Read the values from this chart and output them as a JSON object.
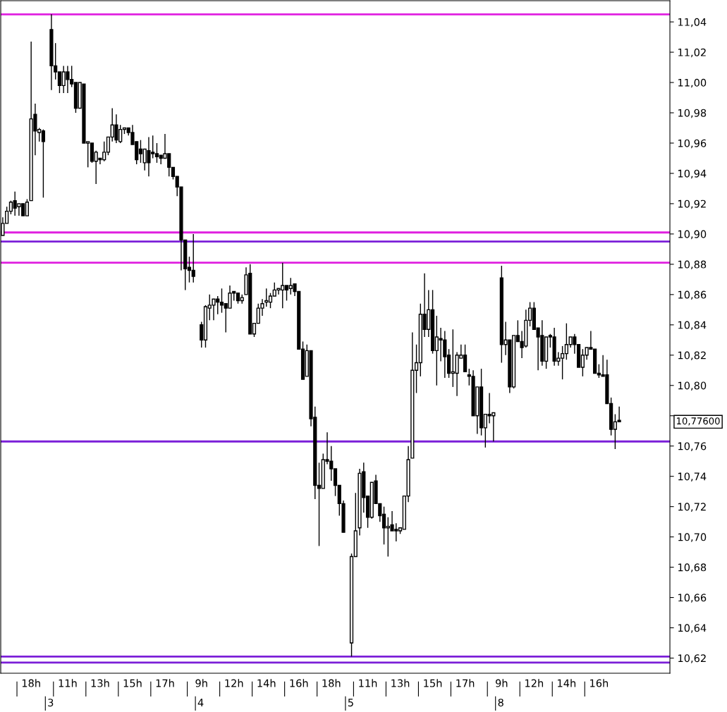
{
  "chart_data": {
    "type": "candlestick",
    "categories": [
      null,
      null,
      null,
      null,
      null,
      null,
      null,
      "18h",
      null,
      null,
      null,
      null,
      null,
      null,
      null,
      null,
      "11h",
      null,
      null,
      null,
      null,
      null,
      null,
      null,
      "13h",
      null,
      null,
      null,
      null,
      null,
      null,
      null,
      "15h",
      null,
      null,
      null,
      null,
      null,
      null,
      null,
      "17h",
      null,
      null,
      null,
      null,
      null,
      null,
      null,
      null,
      "9h",
      null,
      null,
      null,
      null,
      null,
      null,
      null,
      "12h",
      null,
      null,
      null,
      null,
      null,
      null,
      null,
      "14h",
      null,
      null,
      null,
      null,
      null,
      null,
      null,
      "16h",
      null,
      null,
      null,
      null,
      null,
      null,
      null,
      "18h",
      null,
      null,
      null,
      null,
      null,
      null,
      null,
      null,
      "11h",
      null,
      null,
      null,
      null,
      null,
      null,
      null,
      "13h",
      null,
      null,
      null,
      null,
      null,
      null,
      null,
      "15h",
      null,
      null,
      null,
      null,
      null,
      null,
      null,
      "17h",
      null,
      null,
      null,
      null,
      null,
      null,
      null,
      null,
      "9h",
      null,
      null,
      null,
      null,
      null,
      null,
      null,
      "12h",
      null,
      null,
      null,
      null,
      null,
      null,
      null,
      "14h",
      null,
      null,
      null,
      null,
      null,
      null,
      null,
      "16h",
      null,
      null,
      null,
      null,
      null,
      null,
      null,
      null,
      null,
      null,
      null,
      null,
      null,
      null,
      null,
      null,
      null
    ],
    "ohlc": [
      [
        10.899,
        10.911,
        10.899,
        10.907
      ],
      [
        10.907,
        10.918,
        10.907,
        10.915
      ],
      [
        10.915,
        10.922,
        10.913,
        10.921
      ],
      [
        10.922,
        10.928,
        10.912,
        10.917
      ],
      [
        10.918,
        10.92,
        10.912,
        10.92
      ],
      [
        10.92,
        10.92,
        10.912,
        10.912
      ],
      [
        10.912,
        10.923,
        10.912,
        10.921
      ],
      [
        10.922,
        11.027,
        10.922,
        10.976
      ],
      [
        10.979,
        10.986,
        10.952,
        10.968
      ],
      [
        10.967,
        10.97,
        10.961,
        10.969
      ],
      [
        10.968,
        10.969,
        10.924,
        10.961
      ],
      null,
      [
        11.035,
        11.045,
        10.995,
        11.011
      ],
      [
        11.011,
        11.026,
        11.002,
        11.007
      ],
      [
        11.007,
        11.007,
        10.993,
        10.998
      ],
      [
        10.998,
        11.011,
        10.993,
        11.007
      ],
      [
        11.007,
        11.011,
        10.993,
        11.002
      ],
      [
        11.002,
        11.011,
        10.997,
        10.999
      ],
      [
        11.0,
        11.0,
        10.98,
        10.983
      ],
      [
        10.983,
        11.0,
        10.983,
        11.0
      ],
      [
        10.999,
        10.999,
        10.96,
        10.96
      ],
      [
        10.96,
        10.961,
        10.944,
        10.961
      ],
      [
        10.96,
        10.96,
        10.947,
        10.948
      ],
      [
        10.948,
        10.955,
        10.933,
        10.954
      ],
      [
        10.95,
        10.95,
        10.946,
        10.949
      ],
      [
        10.949,
        10.961,
        10.948,
        10.954
      ],
      [
        10.954,
        10.964,
        10.952,
        10.964
      ],
      [
        10.964,
        10.983,
        10.961,
        10.972
      ],
      [
        10.972,
        10.979,
        10.96,
        10.962
      ],
      [
        10.961,
        10.972,
        10.96,
        10.969
      ],
      [
        10.969,
        10.97,
        10.966,
        10.97
      ],
      [
        10.97,
        10.97,
        10.965,
        10.967
      ],
      [
        10.967,
        10.972,
        10.959,
        10.959
      ],
      [
        10.961,
        10.961,
        10.946,
        10.949
      ],
      [
        10.956,
        10.962,
        10.947,
        10.953
      ],
      [
        10.947,
        10.956,
        10.942,
        10.956
      ],
      [
        10.955,
        10.964,
        10.938,
        10.947
      ],
      [
        10.954,
        10.965,
        10.95,
        10.953
      ],
      [
        10.953,
        10.96,
        10.947,
        10.951
      ],
      [
        10.952,
        10.952,
        10.946,
        10.95
      ],
      [
        10.95,
        10.966,
        10.95,
        10.953
      ],
      [
        10.953,
        10.953,
        10.938,
        10.944
      ],
      [
        10.944,
        10.944,
        10.936,
        10.938
      ],
      [
        10.938,
        10.938,
        10.925,
        10.931
      ],
      [
        10.931,
        10.931,
        10.876,
        10.896
      ],
      [
        10.896,
        10.896,
        10.863,
        10.877
      ],
      [
        10.878,
        10.885,
        10.868,
        10.876
      ],
      [
        10.876,
        10.9,
        10.868,
        10.872
      ],
      null,
      [
        10.84,
        10.842,
        10.825,
        10.83
      ],
      [
        10.83,
        10.853,
        10.825,
        10.852
      ],
      [
        10.851,
        10.86,
        10.843,
        10.853
      ],
      [
        10.853,
        10.857,
        10.843,
        10.857
      ],
      [
        10.857,
        10.859,
        10.847,
        10.855
      ],
      [
        10.855,
        10.864,
        10.848,
        10.853
      ],
      [
        10.854,
        10.854,
        10.835,
        10.851
      ],
      [
        10.851,
        10.866,
        10.851,
        10.861
      ],
      [
        10.862,
        10.862,
        10.856,
        10.861
      ],
      [
        10.861,
        10.861,
        10.854,
        10.856
      ],
      [
        10.856,
        10.86,
        10.854,
        10.858
      ],
      [
        10.86,
        10.878,
        10.86,
        10.873
      ],
      [
        10.874,
        10.88,
        10.834,
        10.834
      ],
      [
        10.834,
        10.841,
        10.832,
        10.841
      ],
      [
        10.841,
        10.854,
        10.841,
        10.851
      ],
      [
        10.851,
        10.857,
        10.846,
        10.854
      ],
      [
        10.855,
        10.864,
        10.852,
        10.856
      ],
      [
        10.855,
        10.861,
        10.851,
        10.859
      ],
      [
        10.859,
        10.868,
        10.859,
        10.863
      ],
      [
        10.863,
        10.864,
        10.86,
        10.864
      ],
      [
        10.863,
        10.881,
        10.851,
        10.866
      ],
      [
        10.866,
        10.866,
        10.856,
        10.863
      ],
      [
        10.864,
        10.871,
        10.86,
        10.866
      ],
      [
        10.867,
        10.867,
        10.859,
        10.862
      ],
      [
        10.862,
        10.862,
        10.824,
        10.824
      ],
      [
        10.824,
        10.829,
        10.804,
        10.804
      ],
      [
        10.806,
        10.827,
        10.806,
        10.823
      ],
      [
        10.823,
        10.823,
        10.773,
        10.778
      ],
      [
        10.779,
        10.786,
        10.725,
        10.734
      ],
      [
        10.734,
        10.749,
        10.694,
        10.732
      ],
      [
        10.732,
        10.755,
        10.732,
        10.751
      ],
      [
        10.751,
        10.769,
        10.748,
        10.75
      ],
      [
        10.75,
        10.76,
        10.737,
        10.745
      ],
      [
        10.745,
        10.745,
        10.727,
        10.734
      ],
      [
        10.734,
        10.734,
        10.714,
        10.722
      ],
      [
        10.722,
        10.724,
        10.703,
        10.703
      ],
      null,
      [
        10.63,
        10.689,
        10.621,
        10.687
      ],
      [
        10.687,
        10.729,
        10.687,
        10.704
      ],
      [
        10.706,
        10.745,
        10.701,
        10.742
      ],
      [
        10.743,
        10.749,
        10.716,
        10.726
      ],
      [
        10.727,
        10.727,
        10.706,
        10.713
      ],
      [
        10.713,
        10.736,
        10.712,
        10.736
      ],
      [
        10.737,
        10.741,
        10.722,
        10.722
      ],
      [
        10.722,
        10.722,
        10.71,
        10.714
      ],
      [
        10.715,
        10.72,
        10.695,
        10.706
      ],
      [
        10.706,
        10.713,
        10.687,
        10.707
      ],
      [
        10.708,
        10.717,
        10.704,
        10.704
      ],
      [
        10.705,
        10.709,
        10.697,
        10.704
      ],
      [
        10.704,
        10.706,
        10.702,
        10.706
      ],
      [
        10.705,
        10.727,
        10.705,
        10.727
      ],
      [
        10.727,
        10.76,
        10.723,
        10.751
      ],
      [
        10.752,
        10.835,
        10.752,
        10.81
      ],
      [
        10.81,
        10.827,
        10.795,
        10.815
      ],
      [
        10.815,
        10.854,
        10.806,
        10.847
      ],
      [
        10.847,
        10.874,
        10.832,
        10.837
      ],
      [
        10.837,
        10.863,
        10.832,
        10.85
      ],
      [
        10.85,
        10.863,
        10.821,
        10.823
      ],
      [
        10.823,
        10.846,
        10.8,
        10.832
      ],
      [
        10.831,
        10.838,
        10.816,
        10.83
      ],
      [
        10.83,
        10.836,
        10.805,
        10.819
      ],
      [
        10.82,
        10.824,
        10.805,
        10.808
      ],
      [
        10.808,
        10.837,
        10.799,
        10.809
      ],
      [
        10.808,
        10.822,
        10.793,
        10.82
      ],
      [
        10.818,
        10.827,
        10.818,
        10.82
      ],
      [
        10.82,
        10.827,
        10.809,
        10.809
      ],
      [
        10.807,
        10.811,
        10.8,
        10.806
      ],
      [
        10.806,
        10.81,
        10.78,
        10.78
      ],
      [
        10.78,
        10.799,
        10.768,
        10.799
      ],
      [
        10.799,
        10.811,
        10.767,
        10.772
      ],
      [
        10.772,
        10.781,
        10.759,
        10.781
      ],
      [
        10.781,
        10.795,
        10.775,
        10.78
      ],
      [
        10.78,
        10.782,
        10.763,
        10.782
      ],
      null,
      [
        10.871,
        10.879,
        10.815,
        10.827
      ],
      [
        10.827,
        10.842,
        10.82,
        10.83
      ],
      [
        10.83,
        10.83,
        10.795,
        10.799
      ],
      [
        10.799,
        10.833,
        10.798,
        10.833
      ],
      [
        10.833,
        10.843,
        10.829,
        10.829
      ],
      [
        10.829,
        10.836,
        10.818,
        10.825
      ],
      [
        10.826,
        10.85,
        10.825,
        10.843
      ],
      [
        10.843,
        10.855,
        10.839,
        10.851
      ],
      [
        10.851,
        10.855,
        10.837,
        10.837
      ],
      [
        10.838,
        10.838,
        10.81,
        10.832
      ],
      [
        10.833,
        10.843,
        10.813,
        10.816
      ],
      [
        10.816,
        10.832,
        10.811,
        10.832
      ],
      [
        10.833,
        10.834,
        10.825,
        10.832
      ],
      [
        10.832,
        10.838,
        10.813,
        10.816
      ],
      [
        10.816,
        10.822,
        10.813,
        10.818
      ],
      [
        10.818,
        10.826,
        10.804,
        10.821
      ],
      [
        10.821,
        10.841,
        10.817,
        10.827
      ],
      [
        10.827,
        10.832,
        10.825,
        10.832
      ],
      [
        10.832,
        10.834,
        10.821,
        10.827
      ],
      [
        10.827,
        10.827,
        10.812,
        10.812
      ],
      [
        10.812,
        10.824,
        10.806,
        10.82
      ],
      [
        10.82,
        10.825,
        10.817,
        10.825
      ],
      [
        10.825,
        10.836,
        10.824,
        10.824
      ],
      [
        10.824,
        10.824,
        10.808,
        10.808
      ],
      [
        10.808,
        10.814,
        10.805,
        10.807
      ],
      [
        10.807,
        10.82,
        10.806,
        10.806
      ],
      [
        10.807,
        10.817,
        10.788,
        10.788
      ],
      [
        10.788,
        10.792,
        10.767,
        10.771
      ],
      [
        10.771,
        10.781,
        10.758,
        10.776
      ],
      [
        10.777,
        10.786,
        10.776,
        10.776
      ],
      null,
      null,
      null,
      null,
      null,
      null,
      null,
      null,
      null,
      null,
      null,
      null
    ],
    "ylim": [
      10.61,
      11.054
    ],
    "yticks": [
      {
        "value": 10.62,
        "label": "10,62"
      },
      {
        "value": 10.64,
        "label": "10,64"
      },
      {
        "value": 10.66,
        "label": "10,66"
      },
      {
        "value": 10.68,
        "label": "10,68"
      },
      {
        "value": 10.7,
        "label": "10,70"
      },
      {
        "value": 10.72,
        "label": "10,72"
      },
      {
        "value": 10.74,
        "label": "10,74"
      },
      {
        "value": 10.76,
        "label": "10,76"
      },
      {
        "value": 10.78,
        "label": null
      },
      {
        "value": 10.8,
        "label": "10,80"
      },
      {
        "value": 10.82,
        "label": "10,82"
      },
      {
        "value": 10.84,
        "label": "10,84"
      },
      {
        "value": 10.86,
        "label": "10,86"
      },
      {
        "value": 10.88,
        "label": "10,88"
      },
      {
        "value": 10.9,
        "label": "10,90"
      },
      {
        "value": 10.92,
        "label": "10,92"
      },
      {
        "value": 10.94,
        "label": "10,94"
      },
      {
        "value": 10.96,
        "label": "10,96"
      },
      {
        "value": 10.98,
        "label": "10,98"
      },
      {
        "value": 11.0,
        "label": "11,00"
      },
      {
        "value": 11.02,
        "label": "11,02"
      },
      {
        "value": 11.04,
        "label": "11,04"
      }
    ],
    "ref_lines": [
      {
        "axis": "y",
        "value": 11.045,
        "color": "#e020e0"
      },
      {
        "axis": "y",
        "value": 10.901,
        "color": "#e020e0"
      },
      {
        "axis": "y",
        "value": 10.895,
        "color": "#7b1fd8"
      },
      {
        "axis": "y",
        "value": 10.881,
        "color": "#e020e0"
      },
      {
        "axis": "y",
        "value": 10.763,
        "color": "#7b1fd8"
      },
      {
        "axis": "y",
        "value": 10.621,
        "color": "#7b1fd8"
      },
      {
        "axis": "y",
        "value": 10.617,
        "color": "#7b1fd8"
      }
    ],
    "annotations": [
      "3",
      "4",
      "5",
      "8",
      "10,77600"
    ]
  }
}
